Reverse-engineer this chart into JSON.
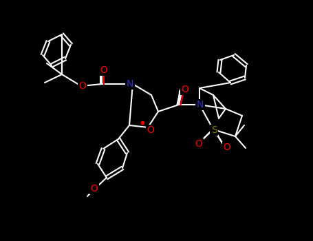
{
  "background": "#000000",
  "bond_color": "#ffffff",
  "atom_colors": {
    "O": "#ff0000",
    "N": "#3030cc",
    "S": "#808000",
    "C": "#ffffff"
  },
  "lw": 1.5,
  "figsize": [
    4.55,
    3.5
  ],
  "dpi": 100
}
